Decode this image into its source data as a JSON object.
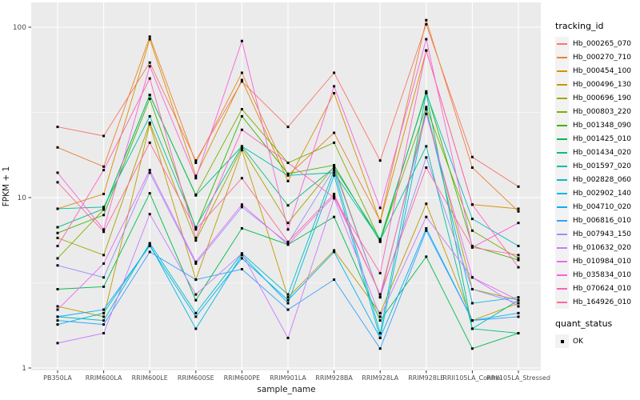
{
  "chart_data": {
    "type": "line",
    "title": "",
    "xlabel": "sample_name",
    "ylabel": "FPKM + 1",
    "y_scale": "log10",
    "y_tick_labels": [
      "1",
      "10",
      "100"
    ],
    "y_tick_values": [
      1,
      10,
      100
    ],
    "y_minor_values": [
      3.1623,
      31.623
    ],
    "ylim": [
      1,
      140
    ],
    "grid": "on",
    "legend_position": "right",
    "panel_bg": "#EBEBEB",
    "grid_color": "#FFFFFF",
    "point_color": "#000000",
    "axis_text_color": "#4D4D4D",
    "axis_title_color": "#1A1A1A",
    "tick_mark_color": "#333333",
    "categories": [
      "PB350LA",
      "RRIM600LA",
      "RRIM600LE",
      "RRIM600SE",
      "RRIM600PE",
      "RRIM901LA",
      "RRIM928BA",
      "RRIM928LA",
      "RRIM928LE",
      "RRII105LA_Control",
      "RRII105LA_Stressed"
    ],
    "series": [
      {
        "name": "Hb_000265_070",
        "color": "#F8766D",
        "values": [
          26,
          23,
          62,
          16.5,
          48,
          26,
          54,
          16.5,
          104,
          17.3,
          11.6
        ]
      },
      {
        "name": "Hb_000270_710",
        "color": "#EA8331",
        "values": [
          19.7,
          15.2,
          88,
          16,
          54,
          13.5,
          24,
          7.3,
          110,
          15,
          8.3
        ]
      },
      {
        "name": "Hb_000454_100",
        "color": "#D89000",
        "values": [
          8.6,
          10.5,
          85,
          13.4,
          49,
          12.5,
          41,
          7.2,
          73,
          9.1,
          8.6
        ]
      },
      {
        "name": "Hb_000496_130",
        "color": "#C09B00",
        "values": [
          2.3,
          2.0,
          27,
          3.3,
          19,
          2.6,
          4.9,
          2.1,
          9.2,
          1.9,
          2.4
        ]
      },
      {
        "name": "Hb_000696_190",
        "color": "#A3A500",
        "values": [
          5.8,
          4.6,
          27.5,
          5.6,
          19.5,
          7.1,
          15.2,
          2.6,
          33,
          2.9,
          2.5
        ]
      },
      {
        "name": "Hb_000803_220",
        "color": "#7CAE00",
        "values": [
          4.4,
          8.5,
          40,
          10.4,
          33,
          16,
          21,
          5.6,
          34,
          6.4,
          4.4
        ]
      },
      {
        "name": "Hb_001348_090",
        "color": "#39B600",
        "values": [
          6.2,
          7.9,
          38,
          6.6,
          30,
          13.8,
          15.5,
          5.5,
          42,
          5.2,
          4.3
        ]
      },
      {
        "name": "Hb_001425_010",
        "color": "#00BB4E",
        "values": [
          2.9,
          3.0,
          10.6,
          2.5,
          6.6,
          5.3,
          7.7,
          1.9,
          4.5,
          1.3,
          1.6
        ]
      },
      {
        "name": "Hb_001434_020",
        "color": "#00BF7D",
        "values": [
          6.7,
          8.6,
          40,
          10.3,
          20,
          9.0,
          15,
          5.7,
          41,
          1.7,
          1.6
        ]
      },
      {
        "name": "Hb_001597_020",
        "color": "#00C1A3",
        "values": [
          8.6,
          8.8,
          30,
          6.7,
          20,
          13.5,
          14,
          5.6,
          20,
          1.7,
          2.5
        ]
      },
      {
        "name": "Hb_002828_060",
        "color": "#00BFC4",
        "values": [
          2.0,
          1.9,
          5.4,
          2.1,
          4.7,
          2.7,
          14.5,
          1.6,
          41,
          7.5,
          5.2
        ]
      },
      {
        "name": "Hb_002902_140",
        "color": "#00BAE0",
        "values": [
          1.8,
          2.1,
          5.3,
          1.7,
          4.6,
          2.4,
          13.5,
          1.5,
          33,
          2.4,
          2.6
        ]
      },
      {
        "name": "Hb_004710_020",
        "color": "#00B0F6",
        "values": [
          2.0,
          2.2,
          5.2,
          2.0,
          4.4,
          2.5,
          4.8,
          1.5,
          6.6,
          1.9,
          2.1
        ]
      },
      {
        "name": "Hb_006816_010",
        "color": "#35A2FF",
        "values": [
          1.9,
          1.8,
          4.8,
          3.3,
          3.8,
          2.2,
          3.3,
          1.3,
          6.4,
          1.9,
          2.0
        ]
      },
      {
        "name": "Hb_007943_150",
        "color": "#9590FF",
        "values": [
          4.0,
          3.4,
          14,
          4.1,
          8.8,
          5.4,
          14.8,
          2.6,
          17.2,
          2.9,
          2.4
        ]
      },
      {
        "name": "Hb_010632_020",
        "color": "#C77CFF",
        "values": [
          1.4,
          1.6,
          8.0,
          2.7,
          4.7,
          1.5,
          9.9,
          2.0,
          7.7,
          3.4,
          2.3
        ]
      },
      {
        "name": "Hb_010984_010",
        "color": "#E76BF3",
        "values": [
          2.2,
          4.1,
          14.5,
          4.2,
          9.1,
          5.3,
          10.2,
          2.7,
          31,
          3.4,
          2.5
        ]
      },
      {
        "name": "Hb_035834_010",
        "color": "#FA62DB",
        "values": [
          14,
          6.5,
          59,
          13,
          83,
          6.5,
          45,
          8.7,
          85,
          5.1,
          7.1
        ]
      },
      {
        "name": "Hb_070624_010",
        "color": "#FF62BC",
        "values": [
          5.2,
          14.5,
          50,
          5.8,
          25,
          16,
          10,
          3.6,
          73,
          9.1,
          3.9
        ]
      },
      {
        "name": "Hb_164926_010",
        "color": "#FF6A98",
        "values": [
          12.3,
          6.3,
          21,
          6.5,
          13,
          5.5,
          10.5,
          2.7,
          15,
          5.1,
          4.6
        ]
      }
    ],
    "legend": {
      "tracking_title": "tracking_id",
      "quant_title": "quant_status",
      "quant_items": [
        {
          "label": "OK",
          "marker": "black-square"
        }
      ]
    }
  }
}
